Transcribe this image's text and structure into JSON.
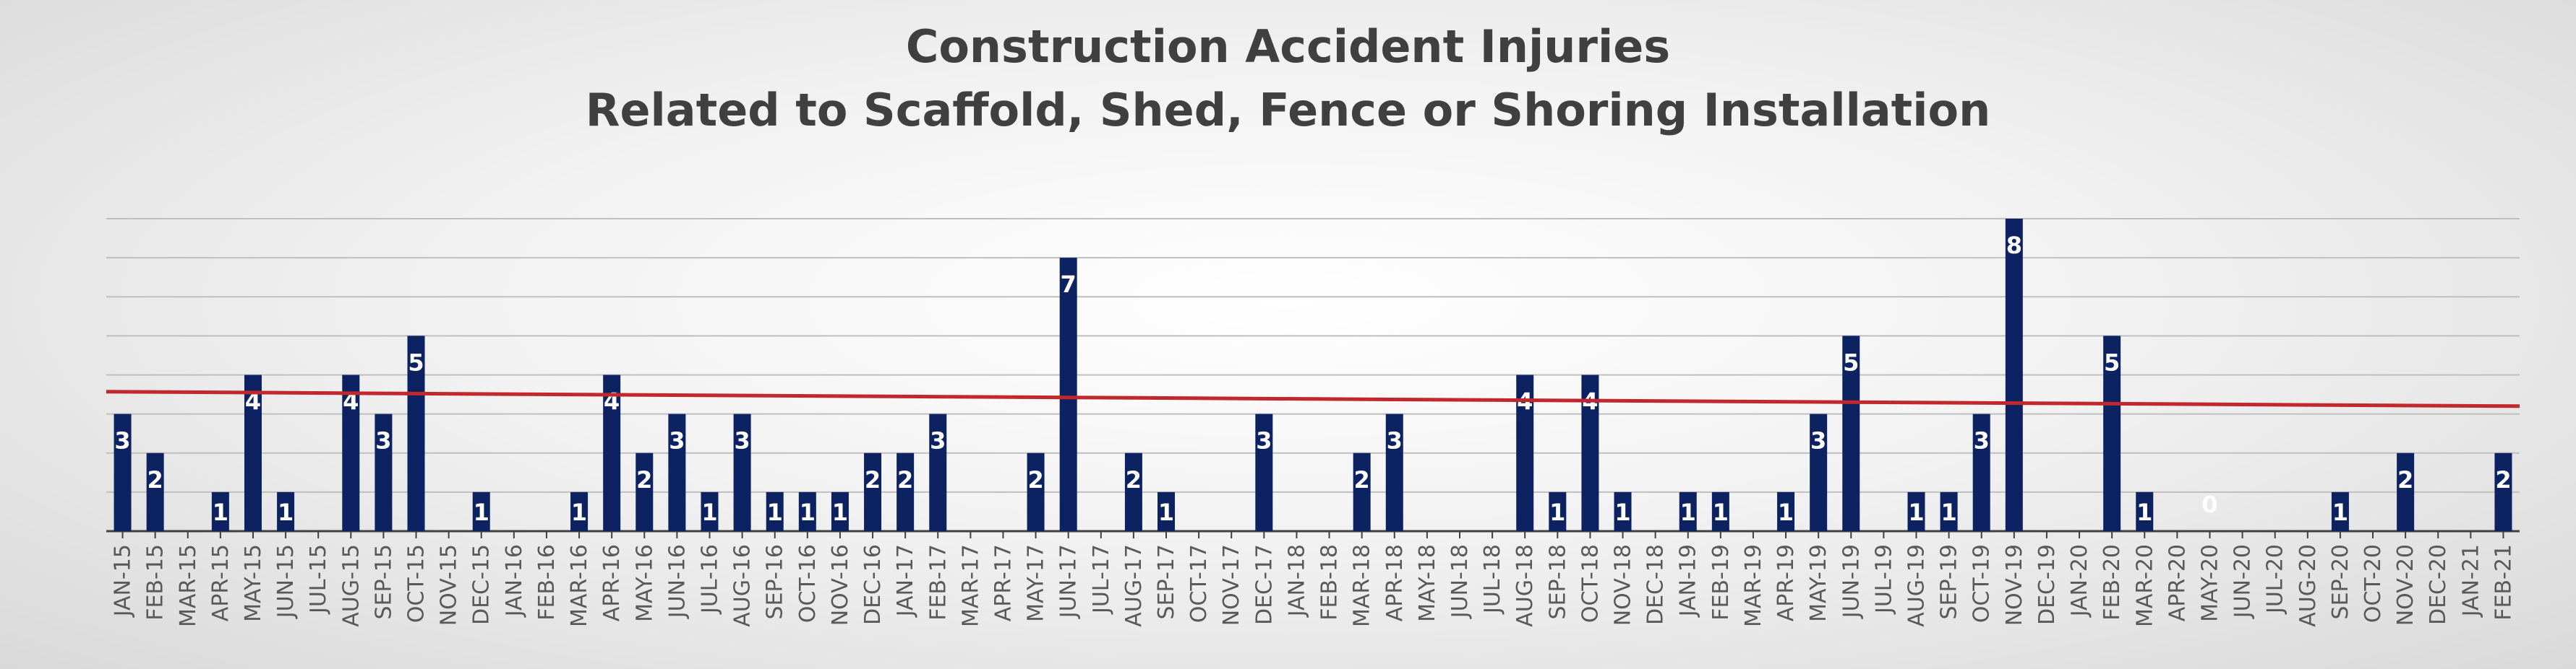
{
  "chart_data": {
    "type": "bar",
    "title": "Construction Accident Injuries",
    "subtitle": "Related to Scaffold, Shed, Fence or Shoring Installation",
    "xlabel": "",
    "ylabel": "",
    "ylim": [
      0,
      8
    ],
    "grid": true,
    "legend": "none",
    "categories": [
      "JAN-15",
      "FEB-15",
      "MAR-15",
      "APR-15",
      "MAY-15",
      "JUN-15",
      "JUL-15",
      "AUG-15",
      "SEP-15",
      "OCT-15",
      "NOV-15",
      "DEC-15",
      "JAN-16",
      "FEB-16",
      "MAR-16",
      "APR-16",
      "MAY-16",
      "JUN-16",
      "JUL-16",
      "AUG-16",
      "SEP-16",
      "OCT-16",
      "NOV-16",
      "DEC-16",
      "JAN-17",
      "FEB-17",
      "MAR-17",
      "APR-17",
      "MAY-17",
      "JUN-17",
      "JUL-17",
      "AUG-17",
      "SEP-17",
      "OCT-17",
      "NOV-17",
      "DEC-17",
      "JAN-18",
      "FEB-18",
      "MAR-18",
      "APR-18",
      "MAY-18",
      "JUN-18",
      "JUL-18",
      "AUG-18",
      "SEP-18",
      "OCT-18",
      "NOV-18",
      "DEC-18",
      "JAN-19",
      "FEB-19",
      "MAR-19",
      "APR-19",
      "MAY-19",
      "JUN-19",
      "JUL-19",
      "AUG-19",
      "SEP-19",
      "OCT-19",
      "NOV-19",
      "DEC-19",
      "JAN-20",
      "FEB-20",
      "MAR-20",
      "APR-20",
      "MAY-20",
      "JUN-20",
      "JUL-20",
      "AUG-20",
      "SEP-20",
      "OCT-20",
      "NOV-20",
      "DEC-20",
      "JAN-21",
      "FEB-21"
    ],
    "values": [
      3,
      2,
      0,
      1,
      4,
      1,
      0,
      4,
      3,
      5,
      0,
      1,
      0,
      0,
      1,
      4,
      2,
      3,
      1,
      3,
      1,
      1,
      1,
      2,
      2,
      3,
      0,
      0,
      2,
      7,
      0,
      2,
      1,
      0,
      0,
      3,
      0,
      0,
      2,
      3,
      0,
      0,
      0,
      4,
      1,
      4,
      1,
      0,
      1,
      1,
      0,
      1,
      3,
      5,
      0,
      1,
      1,
      3,
      8,
      0,
      0,
      5,
      1,
      0,
      0,
      0,
      0,
      0,
      1,
      0,
      2,
      0,
      0,
      2
    ],
    "shown_labels": [
      0,
      1,
      3,
      4,
      5,
      7,
      8,
      9,
      11,
      14,
      15,
      16,
      17,
      18,
      19,
      20,
      21,
      22,
      23,
      24,
      25,
      28,
      29,
      31,
      32,
      35,
      38,
      39,
      43,
      44,
      45,
      46,
      48,
      49,
      51,
      52,
      53,
      55,
      56,
      57,
      58,
      61,
      62,
      64,
      68,
      70,
      73
    ],
    "bar_color": "#0d2260",
    "trend_color": "#c0282d",
    "trend_line": [
      3.57,
      3.2
    ],
    "grid_color": "#bfbfbf"
  }
}
